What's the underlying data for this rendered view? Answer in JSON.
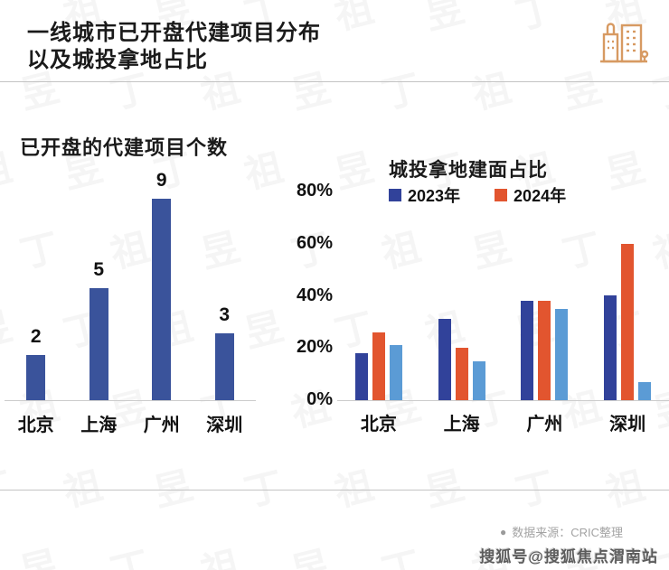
{
  "page": {
    "title_line1": "一线城市已开盘代建项目分布",
    "title_line2": "以及城投拿地占比",
    "source_bullet": "●",
    "source_note": "数据来源：CRIC整理",
    "sohu_watermark": "搜狐号@搜狐焦点渭南站",
    "background_watermark_glyphs": [
      "丁",
      "祖",
      "昱"
    ]
  },
  "colors": {
    "navy_bar": "#3a539b",
    "dark_blue_series": "#31429a",
    "orange_series": "#e2552f",
    "light_blue_series": "#5b9bd5",
    "header_icon_stroke": "#d79a62",
    "baseline_gray": "#cccccc"
  },
  "chart_data": [
    {
      "type": "bar",
      "title": "已开盘的代建项目个数",
      "categories": [
        "北京",
        "上海",
        "广州",
        "深圳"
      ],
      "values": [
        2,
        5,
        9,
        3
      ],
      "bar_color": "#3a539b",
      "ylim": [
        0,
        9
      ],
      "data_labels": true,
      "grid": false,
      "legend_position": "none"
    },
    {
      "type": "bar",
      "title": "城投拿地建面占比",
      "categories": [
        "北京",
        "上海",
        "广州",
        "深圳"
      ],
      "series": [
        {
          "name": "2023年",
          "color": "#31429a",
          "values": [
            18,
            31,
            38,
            40
          ],
          "in_legend": true
        },
        {
          "name": "2024年",
          "color": "#e2552f",
          "values": [
            26,
            20,
            38,
            60
          ],
          "in_legend": true
        },
        {
          "name": "",
          "color": "#5b9bd5",
          "values": [
            21,
            15,
            35,
            7
          ],
          "in_legend": false
        }
      ],
      "ytick_labels": [
        "80%",
        "60%",
        "40%",
        "20%",
        "0%"
      ],
      "ytick_values": [
        80,
        60,
        40,
        20,
        0
      ],
      "ylim": [
        0,
        80
      ],
      "grid": false,
      "legend_position": "top"
    }
  ]
}
